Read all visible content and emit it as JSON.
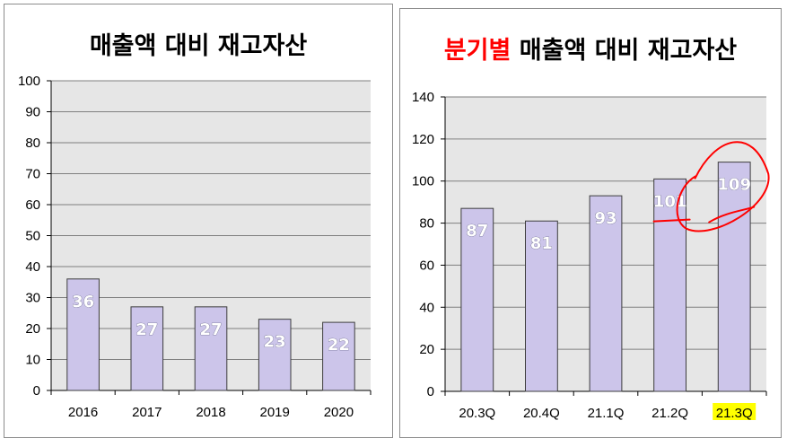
{
  "chart_data": [
    {
      "type": "bar",
      "title": "매출액 대비 재고자산",
      "categories": [
        "2016",
        "2017",
        "2018",
        "2019",
        "2020"
      ],
      "values": [
        36,
        27,
        27,
        23,
        22
      ],
      "data_labels": [
        "36",
        "27",
        "27",
        "23",
        "22"
      ],
      "ylim": [
        0,
        100
      ],
      "yticks": [
        "0",
        "10",
        "20",
        "30",
        "40",
        "50",
        "60",
        "70",
        "80",
        "90",
        "100"
      ],
      "grid": true,
      "legend": "none",
      "colors": {
        "bar": "#ccc5ea",
        "bar_edge": "#3d3d3d",
        "plot_bg": "#e6e6e6",
        "grid": "#7f7f7f"
      }
    },
    {
      "type": "bar",
      "title_prefix": "분기별",
      "title": "매출액 대비 재고자산",
      "categories": [
        "20.3Q",
        "20.4Q",
        "21.1Q",
        "21.2Q",
        "21.3Q"
      ],
      "values": [
        87,
        81,
        93,
        101,
        109
      ],
      "data_labels": [
        "87",
        "81",
        "93",
        "101",
        "109"
      ],
      "ylim": [
        0,
        140
      ],
      "yticks": [
        "0",
        "20",
        "40",
        "60",
        "80",
        "100",
        "120",
        "140"
      ],
      "grid": true,
      "legend": "none",
      "highlighted_category": "21.3Q",
      "colors": {
        "bar": "#ccc5ea",
        "bar_edge": "#3d3d3d",
        "plot_bg": "#e6e6e6",
        "grid": "#7f7f7f",
        "title_accent": "#ff0000",
        "highlight": "#ffff00",
        "annotation": "#ff0000"
      }
    }
  ]
}
